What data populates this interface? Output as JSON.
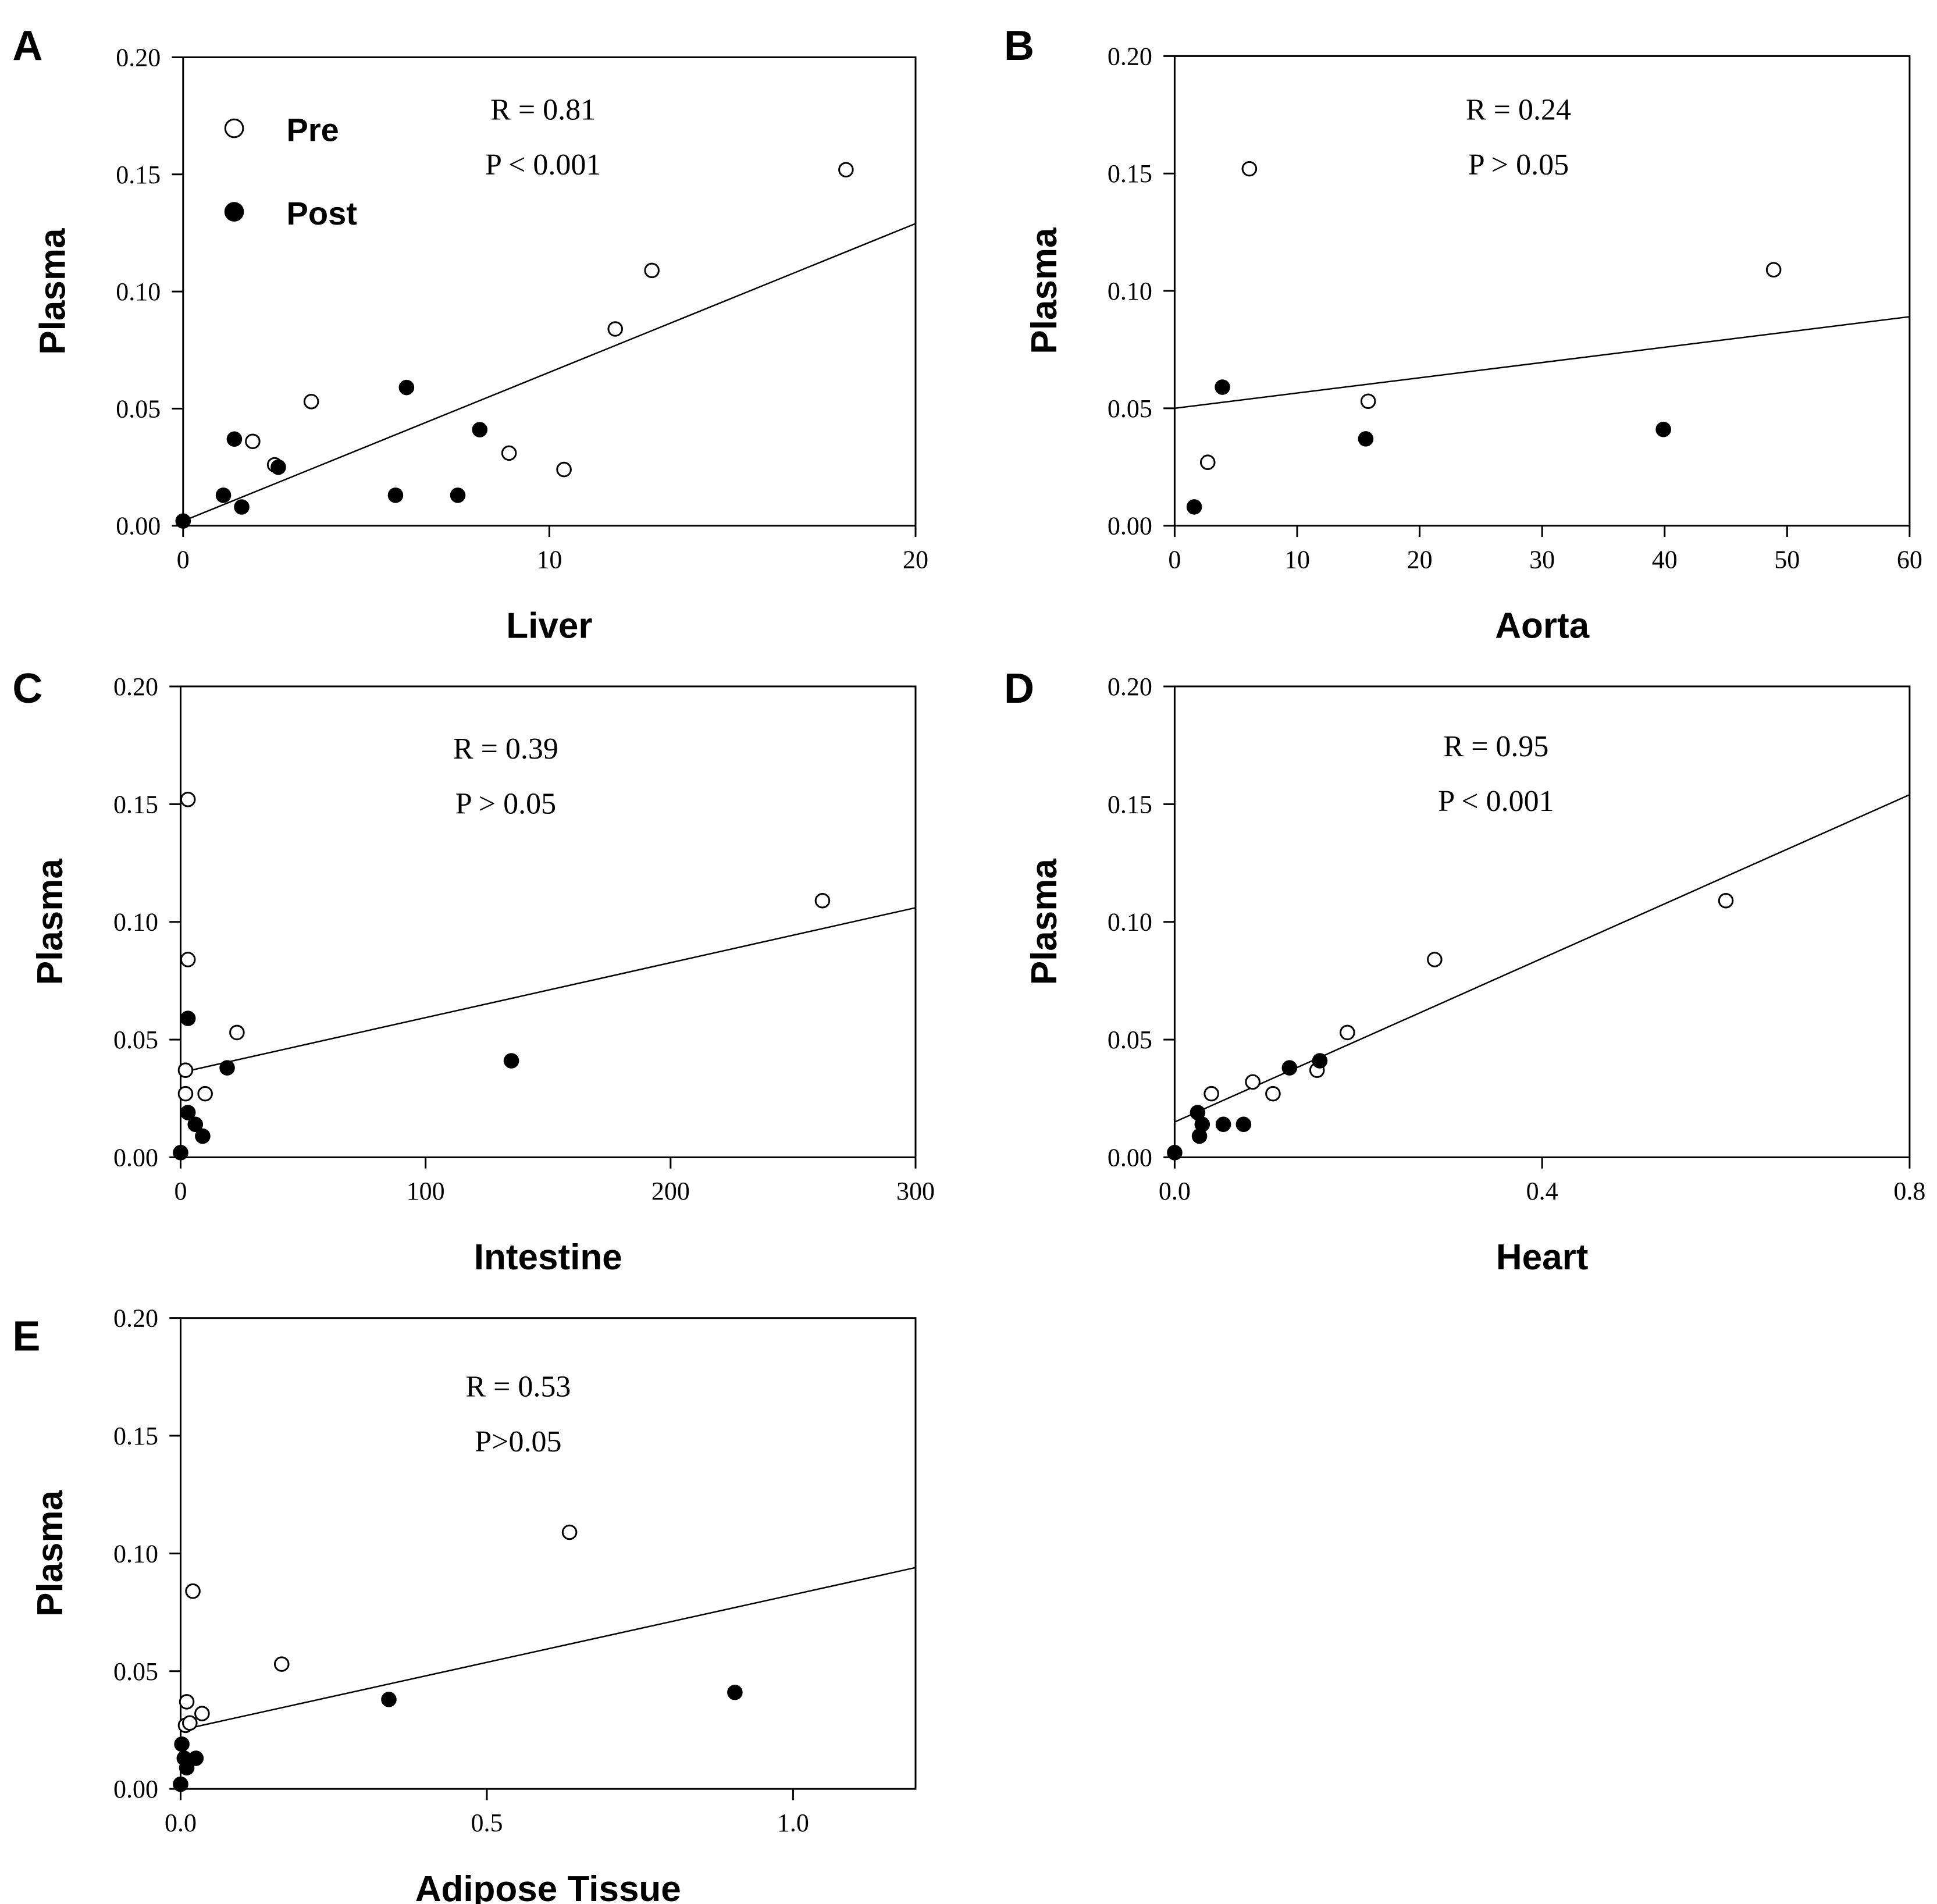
{
  "chart_data": [
    {
      "type": "scatter",
      "panel": "A",
      "xlabel": "Liver",
      "ylabel": "Plasma",
      "xlim": [
        0,
        20
      ],
      "ylim": [
        0,
        0.2
      ],
      "xticks": [
        "0",
        "10",
        "20"
      ],
      "yticks": [
        "0.00",
        "0.05",
        "0.10",
        "0.15",
        "0.20"
      ],
      "stats": [
        "R = 0.81",
        "P < 0.001"
      ],
      "legend": {
        "placement": "top-left",
        "entries": [
          {
            "name": "Pre",
            "marker": "open-circle"
          },
          {
            "name": "Post",
            "marker": "filled-circle"
          }
        ]
      },
      "fit": [
        [
          0,
          0.002
        ],
        [
          20,
          0.129
        ]
      ],
      "series": [
        {
          "name": "Pre",
          "points": [
            [
              1.9,
              0.036
            ],
            [
              2.5,
              0.026
            ],
            [
              3.5,
              0.053
            ],
            [
              8.9,
              0.031
            ],
            [
              10.4,
              0.024
            ],
            [
              11.8,
              0.084
            ],
            [
              12.8,
              0.109
            ],
            [
              18.1,
              0.152
            ]
          ]
        },
        {
          "name": "Post",
          "points": [
            [
              0.0,
              0.002
            ],
            [
              1.1,
              0.013
            ],
            [
              1.4,
              0.037
            ],
            [
              1.6,
              0.008
            ],
            [
              2.6,
              0.025
            ],
            [
              5.8,
              0.013
            ],
            [
              6.1,
              0.059
            ],
            [
              7.5,
              0.013
            ],
            [
              8.1,
              0.041
            ]
          ]
        }
      ]
    },
    {
      "type": "scatter",
      "panel": "B",
      "xlabel": "Aorta",
      "ylabel": "Plasma",
      "xlim": [
        0,
        60
      ],
      "ylim": [
        0,
        0.2
      ],
      "xticks": [
        "0",
        "10",
        "20",
        "30",
        "40",
        "50",
        "60"
      ],
      "yticks": [
        "0.00",
        "0.05",
        "0.10",
        "0.15",
        "0.20"
      ],
      "stats": [
        "R = 0.24",
        "P > 0.05"
      ],
      "fit": [
        [
          0,
          0.05
        ],
        [
          60,
          0.089
        ]
      ],
      "series": [
        {
          "name": "Pre",
          "points": [
            [
              2.7,
              0.027
            ],
            [
              6.1,
              0.152
            ],
            [
              15.8,
              0.053
            ],
            [
              48.9,
              0.109
            ]
          ]
        },
        {
          "name": "Post",
          "points": [
            [
              1.6,
              0.008
            ],
            [
              3.9,
              0.059
            ],
            [
              15.6,
              0.037
            ],
            [
              39.9,
              0.041
            ]
          ]
        }
      ]
    },
    {
      "type": "scatter",
      "panel": "C",
      "xlabel": "Intestine",
      "ylabel": "Plasma",
      "xlim": [
        0,
        300
      ],
      "ylim": [
        0,
        0.2
      ],
      "xticks": [
        "0",
        "100",
        "200",
        "300"
      ],
      "yticks": [
        "0.00",
        "0.05",
        "0.10",
        "0.15",
        "0.20"
      ],
      "stats": [
        "R = 0.39",
        "P > 0.05"
      ],
      "fit": [
        [
          0,
          0.036
        ],
        [
          300,
          0.106
        ]
      ],
      "series": [
        {
          "name": "Pre",
          "points": [
            [
              3,
              0.152
            ],
            [
              3,
              0.084
            ],
            [
              2,
              0.037
            ],
            [
              2,
              0.027
            ],
            [
              10,
              0.027
            ],
            [
              23,
              0.053
            ],
            [
              262,
              0.109
            ]
          ]
        },
        {
          "name": "Post",
          "points": [
            [
              0,
              0.002
            ],
            [
              3,
              0.059
            ],
            [
              3,
              0.019
            ],
            [
              6,
              0.014
            ],
            [
              9,
              0.009
            ],
            [
              19,
              0.038
            ],
            [
              135,
              0.041
            ]
          ]
        }
      ]
    },
    {
      "type": "scatter",
      "panel": "D",
      "xlabel": "Heart",
      "ylabel": "Plasma",
      "xlim": [
        0,
        0.8
      ],
      "ylim": [
        0,
        0.2
      ],
      "xticks": [
        "0.0",
        "0.4",
        "0.8"
      ],
      "yticks": [
        "0.00",
        "0.05",
        "0.10",
        "0.15",
        "0.20"
      ],
      "stats": [
        "R = 0.95",
        "P < 0.001"
      ],
      "fit": [
        [
          0,
          0.015
        ],
        [
          0.8,
          0.154
        ]
      ],
      "series": [
        {
          "name": "Pre",
          "points": [
            [
              0.04,
              0.027
            ],
            [
              0.085,
              0.032
            ],
            [
              0.107,
              0.027
            ],
            [
              0.155,
              0.037
            ],
            [
              0.188,
              0.053
            ],
            [
              0.283,
              0.084
            ],
            [
              0.6,
              0.109
            ]
          ]
        },
        {
          "name": "Post",
          "points": [
            [
              0.0,
              0.002
            ],
            [
              0.025,
              0.019
            ],
            [
              0.027,
              0.009
            ],
            [
              0.03,
              0.014
            ],
            [
              0.053,
              0.014
            ],
            [
              0.075,
              0.014
            ],
            [
              0.125,
              0.038
            ],
            [
              0.158,
              0.041
            ]
          ]
        }
      ]
    },
    {
      "type": "scatter",
      "panel": "E",
      "xlabel": "Adipose Tissue",
      "ylabel": "Plasma",
      "xlim": [
        0,
        1.2
      ],
      "ylim": [
        0,
        0.2
      ],
      "xticks": [
        "0.0",
        "0.5",
        "1.0"
      ],
      "yticks": [
        "0.00",
        "0.05",
        "0.10",
        "0.15",
        "0.20"
      ],
      "stats": [
        "R = 0.53",
        "P>0.05"
      ],
      "fit": [
        [
          0,
          0.025
        ],
        [
          1.2,
          0.094
        ]
      ],
      "series": [
        {
          "name": "Pre",
          "points": [
            [
              0.008,
              0.027
            ],
            [
              0.015,
              0.028
            ],
            [
              0.01,
              0.037
            ],
            [
              0.02,
              0.084
            ],
            [
              0.035,
              0.032
            ],
            [
              0.165,
              0.053
            ],
            [
              0.635,
              0.109
            ]
          ]
        },
        {
          "name": "Post",
          "points": [
            [
              0.0,
              0.002
            ],
            [
              0.002,
              0.019
            ],
            [
              0.006,
              0.013
            ],
            [
              0.01,
              0.009
            ],
            [
              0.025,
              0.013
            ],
            [
              0.34,
              0.038
            ],
            [
              0.905,
              0.041
            ]
          ]
        }
      ]
    }
  ]
}
